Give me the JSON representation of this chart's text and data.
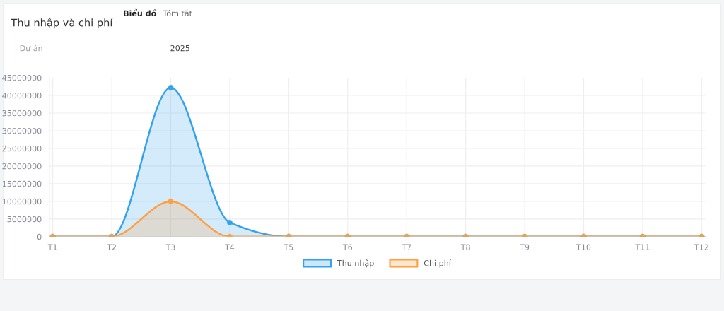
{
  "chart_data": {
    "type": "area",
    "title": "Thu nhập và chi phí",
    "annotations": [
      "Biểu đồ",
      "Tóm tắt",
      "Dự án",
      "2025"
    ],
    "categories": [
      "T1",
      "T2",
      "T3",
      "T4",
      "T5",
      "T6",
      "T7",
      "T8",
      "T9",
      "T10",
      "T11",
      "T12"
    ],
    "series": [
      {
        "name": "Thu nhập",
        "color": "#36a2eb",
        "values": [
          0,
          0,
          42200000,
          4000000,
          0,
          0,
          0,
          0,
          0,
          0,
          0,
          0
        ]
      },
      {
        "name": "Chi phí",
        "color": "#ff9f40",
        "values": [
          0,
          0,
          10000000,
          0,
          0,
          0,
          0,
          0,
          0,
          0,
          0,
          0
        ]
      }
    ],
    "ylim": [
      0,
      45000000
    ],
    "yticks": [
      0,
      5000000,
      10000000,
      15000000,
      20000000,
      25000000,
      30000000,
      35000000,
      40000000,
      45000000
    ],
    "grid": true,
    "legend": "bottom",
    "marker": "circle",
    "line_style": "solid"
  }
}
